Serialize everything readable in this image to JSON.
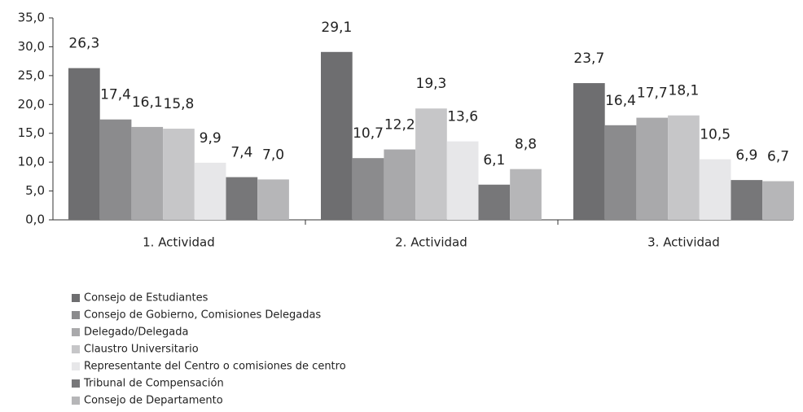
{
  "chart_data": {
    "type": "bar",
    "categories": [
      "1. Actividad",
      "2. Actividad",
      "3. Actividad"
    ],
    "series": [
      {
        "name": "Consejo de Estudiantes",
        "color": "#6e6e70",
        "values": [
          26.3,
          29.1,
          23.7
        ],
        "value_labels": [
          "26,3",
          "29,1",
          "23,7"
        ]
      },
      {
        "name": "Consejo de Gobierno, Comisiones Delegadas",
        "color": "#8b8b8d",
        "values": [
          17.4,
          10.7,
          16.4
        ],
        "value_labels": [
          "17,4",
          "10,7",
          "16,4"
        ]
      },
      {
        "name": "Delegado/Delegada",
        "color": "#a9a9ab",
        "values": [
          16.1,
          12.2,
          17.7
        ],
        "value_labels": [
          "16,1",
          "12,2",
          "17,7"
        ]
      },
      {
        "name": "Claustro Universitario",
        "color": "#c6c6c8",
        "values": [
          15.8,
          19.3,
          18.1
        ],
        "value_labels": [
          "15,8",
          "19,3",
          "18,1"
        ]
      },
      {
        "name": "Representante del Centro o comisiones de centro",
        "color": "#e7e7e9",
        "values": [
          9.9,
          13.6,
          10.5
        ],
        "value_labels": [
          "9,9",
          "13,6",
          "10,5"
        ]
      },
      {
        "name": "Tribunal de Compensación",
        "color": "#777779",
        "values": [
          7.4,
          6.1,
          6.9
        ],
        "value_labels": [
          "7,4",
          "6,1",
          "6,9"
        ]
      },
      {
        "name": "Consejo de Departamento",
        "color": "#b6b6b8",
        "values": [
          7.0,
          8.8,
          6.7
        ],
        "value_labels": [
          "7,0",
          "8,8",
          "6,7"
        ]
      }
    ],
    "ylim": [
      0,
      35
    ],
    "yticks": [
      {
        "value": 0,
        "label": "0,0"
      },
      {
        "value": 5,
        "label": "5,0"
      },
      {
        "value": 10,
        "label": "10,0"
      },
      {
        "value": 15,
        "label": "15,0"
      },
      {
        "value": 20,
        "label": "20,0"
      },
      {
        "value": 25,
        "label": "25,0"
      },
      {
        "value": 30,
        "label": "30,0"
      },
      {
        "value": 35,
        "label": "35,0"
      }
    ],
    "legend": "bottom-left"
  }
}
